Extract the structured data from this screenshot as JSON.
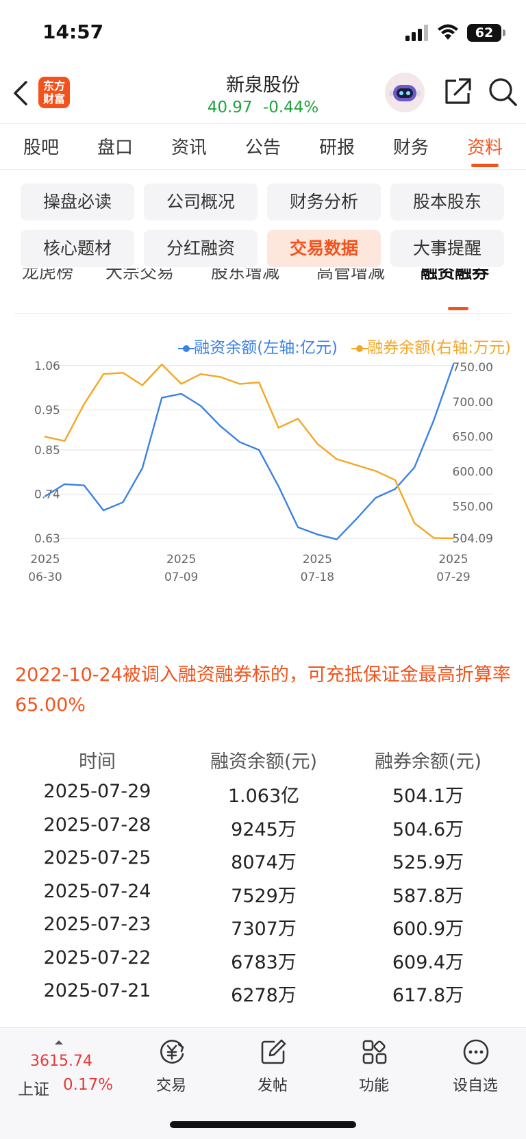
{
  "status_bar": {
    "time": "14:57",
    "battery": "62"
  },
  "header": {
    "logo_line1": "东方",
    "logo_line2": "财富",
    "stock_name": "新泉股份",
    "price": "40.97",
    "change": "-0.44%",
    "colors": {
      "brand": "#f2531c",
      "down": "#1fa33a",
      "up": "#e53935"
    }
  },
  "tabs": [
    "股吧",
    "盘口",
    "资讯",
    "公告",
    "研报",
    "财务",
    "资料"
  ],
  "active_tab": "资料",
  "sub_grid": [
    "操盘必读",
    "公司概况",
    "财务分析",
    "股本股东",
    "核心题材",
    "分红融资",
    "交易数据",
    "大事提醒"
  ],
  "active_sub": "交易数据",
  "sub_tabs": [
    "龙虎榜",
    "大宗交易",
    "股东增减",
    "高管增减",
    "融资融券"
  ],
  "active_sub_tab": "融资融券",
  "chart_data": {
    "type": "line",
    "x": [
      "2025-06-30",
      "2025-07-01",
      "2025-07-02",
      "2025-07-03",
      "2025-07-04",
      "2025-07-07",
      "2025-07-08",
      "2025-07-09",
      "2025-07-10",
      "2025-07-11",
      "2025-07-14",
      "2025-07-15",
      "2025-07-16",
      "2025-07-17",
      "2025-07-18",
      "2025-07-21",
      "2025-07-22",
      "2025-07-23",
      "2025-07-24",
      "2025-07-25",
      "2025-07-28",
      "2025-07-29"
    ],
    "x_ticks": [
      {
        "top": "2025",
        "bottom": "06-30"
      },
      {
        "top": "2025",
        "bottom": "07-09"
      },
      {
        "top": "2025",
        "bottom": "07-18"
      },
      {
        "top": "2025",
        "bottom": "07-29"
      }
    ],
    "legend_placement": "top-right",
    "left_axis": {
      "ticks": [
        "1.06",
        "0.95",
        "0.85",
        "0.74",
        "0.63"
      ],
      "ylim": [
        0.6303,
        1.063
      ]
    },
    "right_axis": {
      "ticks": [
        "750.00",
        "700.00",
        "650.00",
        "600.00",
        "550.00",
        "504.09"
      ],
      "ylim": [
        504.09,
        754
      ]
    },
    "series": [
      {
        "name": "融资余额(左轴:亿元)",
        "axis": "left",
        "color": "#3b82e6",
        "values": [
          0.735,
          0.765,
          0.762,
          0.7,
          0.72,
          0.805,
          0.98,
          0.99,
          0.96,
          0.91,
          0.87,
          0.85,
          0.76,
          0.658,
          0.64,
          0.628,
          0.678,
          0.731,
          0.753,
          0.807,
          0.925,
          1.063
        ]
      },
      {
        "name": "融券余额(右轴:万元)",
        "axis": "right",
        "color": "#f5a623",
        "values": [
          650,
          644,
          697,
          740,
          742,
          724,
          754,
          726,
          740,
          736,
          726,
          728,
          663,
          676,
          640,
          617.8,
          609.4,
          600.9,
          587.8,
          525.9,
          504.6,
          504.1
        ]
      }
    ]
  },
  "note": "2022-10-24被调入融资融券标的，可充抵保证金最高折算率65.00%",
  "table": {
    "headers": [
      "时间",
      "融资余额(元)",
      "融券余额(元)"
    ],
    "rows": [
      [
        "2025-07-29",
        "1.063亿",
        "504.1万"
      ],
      [
        "2025-07-28",
        "9245万",
        "504.6万"
      ],
      [
        "2025-07-25",
        "8074万",
        "525.9万"
      ],
      [
        "2025-07-24",
        "7529万",
        "587.8万"
      ],
      [
        "2025-07-23",
        "7307万",
        "600.9万"
      ],
      [
        "2025-07-22",
        "6783万",
        "609.4万"
      ],
      [
        "2025-07-21",
        "6278万",
        "617.8万"
      ]
    ]
  },
  "bottom_bar": {
    "index_value": "3615.74",
    "index_name": "上证",
    "index_change": "0.17%",
    "nav": [
      {
        "label": "交易",
        "icon": "trade-icon"
      },
      {
        "label": "发帖",
        "icon": "post-icon"
      },
      {
        "label": "功能",
        "icon": "functions-icon"
      },
      {
        "label": "设自选",
        "icon": "more-icon"
      }
    ]
  }
}
